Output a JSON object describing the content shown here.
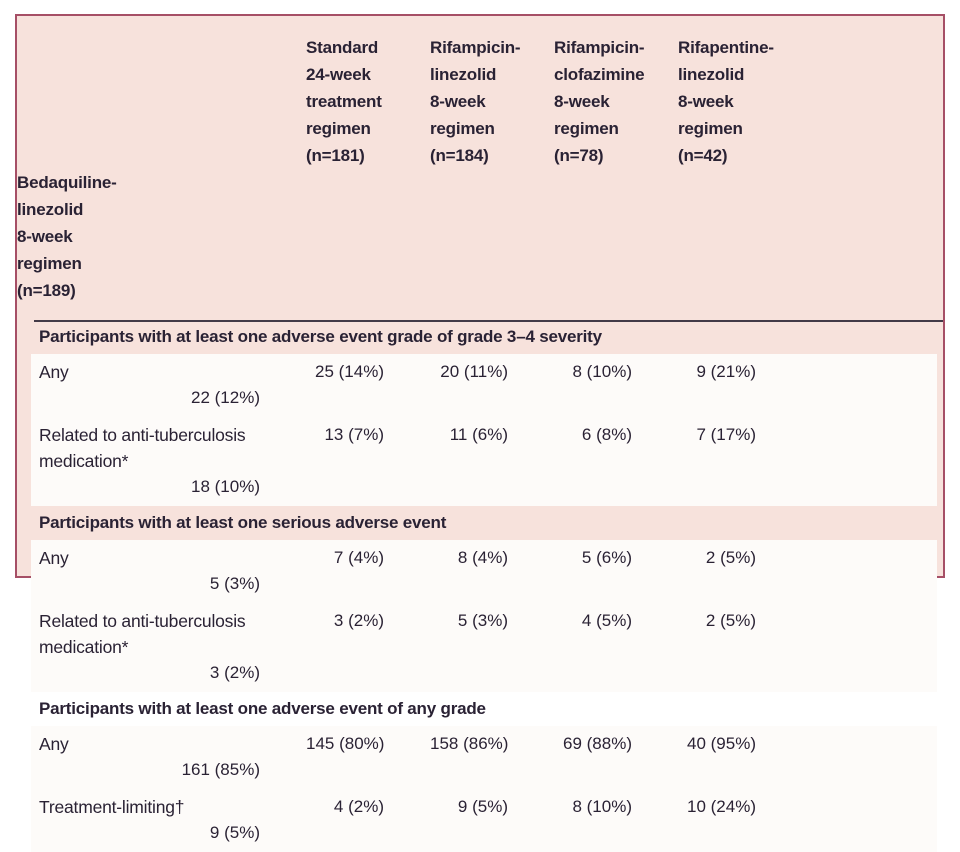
{
  "table": {
    "columns": [
      {
        "label": "Standard 24-week treatment regimen (n=181)",
        "display": "Standard\n24-week\ntreatment\nregimen\n(n=181)"
      },
      {
        "label": "Rifampicin-linezolid 8-week regimen (n=184)",
        "display": "Rifampicin-\nlinezolid\n8-week\nregimen\n(n=184)"
      },
      {
        "label": "Rifampicin-clofazimine 8-week regimen (n=78)",
        "display": "Rifampicin-\nclofazimine\n8-week\nregimen\n(n=78)"
      },
      {
        "label": "Rifapentine-linezolid 8-week regimen (n=42)",
        "display": "Rifapentine-\nlinezolid\n8-week\nregimen\n(n=42)"
      },
      {
        "label": "Bedaquiline-linezolid 8-week regimen (n=189)",
        "display": "Bedaquiline-\nlinezolid\n8-week\nregimen\n(n=189)"
      }
    ],
    "sections": [
      {
        "header": "Participants with at least one adverse event grade of grade 3–4 severity",
        "rows": [
          {
            "label": "Any",
            "values": [
              "25 (14%)",
              "20 (11%)",
              "8 (10%)",
              "9 (21%)",
              "22 (12%)"
            ]
          },
          {
            "label": "Related to anti-tuberculosis medication*",
            "values": [
              "13 (7%)",
              "11 (6%)",
              "6 (8%)",
              "7 (17%)",
              "18 (10%)"
            ]
          }
        ]
      },
      {
        "header": "Participants with at least one serious adverse event",
        "rows": [
          {
            "label": "Any",
            "values": [
              "7 (4%)",
              "8 (4%)",
              "5 (6%)",
              "2 (5%)",
              "5 (3%)"
            ]
          },
          {
            "label": "Related to anti-tuberculosis medication*",
            "values": [
              "3 (2%)",
              "5 (3%)",
              "4 (5%)",
              "2 (5%)",
              "3 (2%)"
            ]
          }
        ]
      },
      {
        "header": "Participants with at least one adverse event of any grade",
        "rows": [
          {
            "label": "Any",
            "values": [
              "145 (80%)",
              "158 (86%)",
              "69 (88%)",
              "40 (95%)",
              "161 (85%)"
            ]
          },
          {
            "label": "Treatment-limiting†",
            "values": [
              "4 (2%)",
              "9 (5%)",
              "8 (10%)",
              "10 (24%)",
              "9 (5%)"
            ]
          }
        ]
      }
    ]
  },
  "colors": {
    "frame_border": "#a64f66",
    "table_background": "#f7e2dc",
    "row_background": "#fdfbf9",
    "text": "#2a2234",
    "header_rule": "#433a47"
  },
  "chart_data": {
    "type": "table",
    "title": "",
    "columns": [
      "",
      "Standard 24-week treatment regimen (n=181)",
      "Rifampicin-linezolid 8-week regimen (n=184)",
      "Rifampicin-clofazimine 8-week regimen (n=78)",
      "Rifapentine-linezolid 8-week regimen (n=42)",
      "Bedaquiline-linezolid 8-week regimen (n=189)"
    ],
    "rows": [
      [
        "Participants with at least one adverse event grade of grade 3–4 severity",
        "",
        "",
        "",
        "",
        ""
      ],
      [
        "Any",
        "25 (14%)",
        "20 (11%)",
        "8 (10%)",
        "9 (21%)",
        "22 (12%)"
      ],
      [
        "Related to anti-tuberculosis medication*",
        "13 (7%)",
        "11 (6%)",
        "6 (8%)",
        "7 (17%)",
        "18 (10%)"
      ],
      [
        "Participants with at least one serious adverse event",
        "",
        "",
        "",
        "",
        ""
      ],
      [
        "Any",
        "7 (4%)",
        "8 (4%)",
        "5 (6%)",
        "2 (5%)",
        "5 (3%)"
      ],
      [
        "Related to anti-tuberculosis medication*",
        "3 (2%)",
        "5 (3%)",
        "4 (5%)",
        "2 (5%)",
        "3 (2%)"
      ],
      [
        "Participants with at least one adverse event of any grade",
        "",
        "",
        "",
        "",
        ""
      ],
      [
        "Any",
        "145 (80%)",
        "158 (86%)",
        "69 (88%)",
        "40 (95%)",
        "161 (85%)"
      ],
      [
        "Treatment-limiting†",
        "4 (2%)",
        "9 (5%)",
        "8 (10%)",
        "10 (24%)",
        "9 (5%)"
      ]
    ]
  }
}
